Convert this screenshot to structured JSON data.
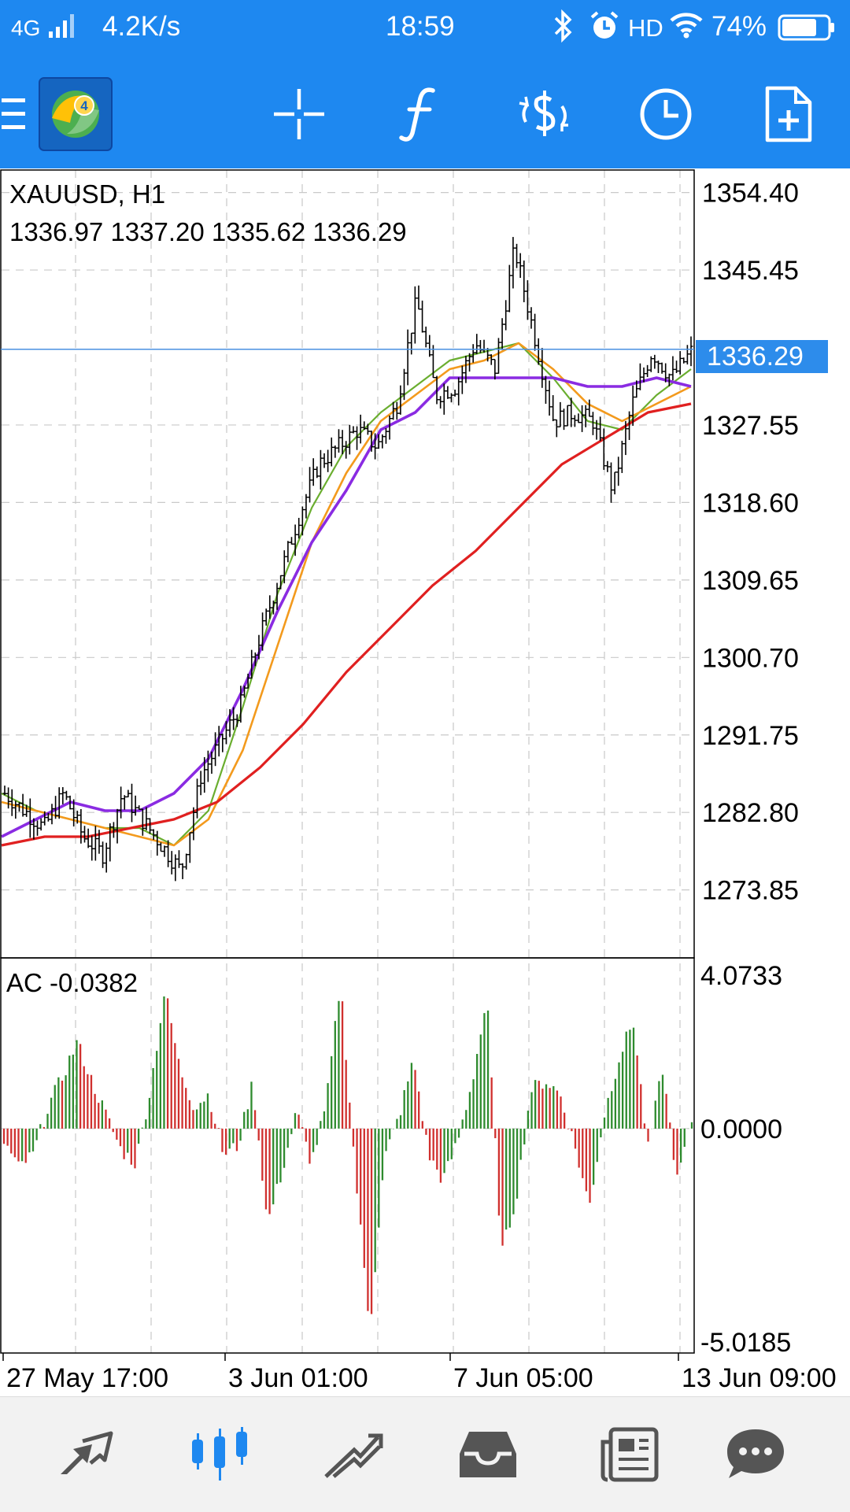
{
  "status_bar": {
    "network": "4G",
    "speed": "4.2K/s",
    "time": "18:59",
    "hd": "HD",
    "battery": "74%",
    "battery_level": 0.74
  },
  "toolbar": {
    "icons": [
      "menu-icon",
      "metatrader-logo",
      "crosshair-icon",
      "function-icon",
      "symbol-change-icon",
      "timeframe-icon",
      "new-order-icon"
    ]
  },
  "chart": {
    "symbol_timeframe": "XAUUSD, H1",
    "ohlc": "1336.97 1337.20 1335.62 1336.29",
    "current_price": "1336.29",
    "indicator_label": "AC -0.0382",
    "colors": {
      "accent": "#1E88F0",
      "ma_green": "#6AAE2F",
      "ma_orange": "#F39A1D",
      "ma_purple": "#8A2BE2",
      "ma_red": "#E02020",
      "ac_up": "#2E8B2E",
      "ac_down": "#D0302E"
    }
  },
  "chart_data": {
    "type": "line",
    "price_axis_ticks": [
      "1354.40",
      "1345.45",
      "1336.29",
      "1327.55",
      "1318.60",
      "1309.65",
      "1300.70",
      "1291.75",
      "1282.80",
      "1273.85"
    ],
    "ac_axis_ticks": [
      "4.0733",
      "0.0000",
      "-5.0185"
    ],
    "x_tick_labels": [
      "27 May 17:00",
      "3 Jun 01:00",
      "7 Jun 05:00",
      "13 Jun 09:00"
    ],
    "ylim": [
      1266,
      1357
    ],
    "ac_ylim": [
      -5.0185,
      4.0733
    ],
    "close_path": [
      1285,
      1283,
      1281,
      1285,
      1280,
      1278,
      1285,
      1282,
      1279,
      1276,
      1287,
      1291,
      1295,
      1303,
      1310,
      1317,
      1323,
      1325,
      1327,
      1325,
      1330,
      1342,
      1331,
      1332,
      1337,
      1334,
      1348,
      1338,
      1328,
      1329,
      1328,
      1320,
      1330,
      1336,
      1333,
      1336
    ],
    "series": [
      {
        "values": [
          1285,
          1283,
          1282,
          1281,
          1281,
          1279,
          1283,
          1295,
          1308,
          1318,
          1325,
          1329,
          1332,
          1335,
          1336,
          1337,
          1333,
          1328,
          1327,
          1331,
          1334
        ]
      },
      {
        "values": [
          1284,
          1283,
          1282,
          1281,
          1280,
          1279,
          1282,
          1290,
          1302,
          1314,
          1322,
          1328,
          1331,
          1334,
          1335,
          1337,
          1334,
          1330,
          1328,
          1330,
          1332
        ]
      },
      {
        "values": [
          1280,
          1282,
          1284,
          1283,
          1283,
          1285,
          1289,
          1297,
          1306,
          1314,
          1320,
          1327,
          1329,
          1333,
          1333,
          1333,
          1333,
          1332,
          1332,
          1333,
          1332
        ]
      },
      {
        "values": [
          1279,
          1280,
          1280,
          1281,
          1282,
          1284,
          1288,
          1293,
          1299,
          1304,
          1309,
          1313,
          1318,
          1323,
          1326,
          1329,
          1330
        ]
      }
    ],
    "ac_values": [
      -0.3,
      -0.9,
      -0.6,
      0.5,
      1.2,
      2.0,
      1.1,
      0.3,
      -0.5,
      -0.8,
      0.9,
      3.2,
      1.4,
      0.5,
      0.8,
      -0.6,
      -0.4,
      1.1,
      -2.2,
      -1.0,
      0.4,
      -0.8,
      0.5,
      3.4,
      -1.0,
      -4.6,
      -0.7,
      0.3,
      1.6,
      -0.6,
      -1.2,
      -0.3,
      1.1,
      3.0,
      -2.9,
      -1.6,
      0.9,
      1.1,
      0.8,
      -0.4,
      -1.8,
      0.3,
      1.6,
      2.5,
      -0.5,
      1.4,
      -1.2,
      0.2
    ]
  },
  "bottom_nav": {
    "items": [
      "quotes-icon",
      "chart-icon",
      "trade-icon",
      "history-icon",
      "news-icon",
      "messages-icon"
    ],
    "active_index": 1
  }
}
